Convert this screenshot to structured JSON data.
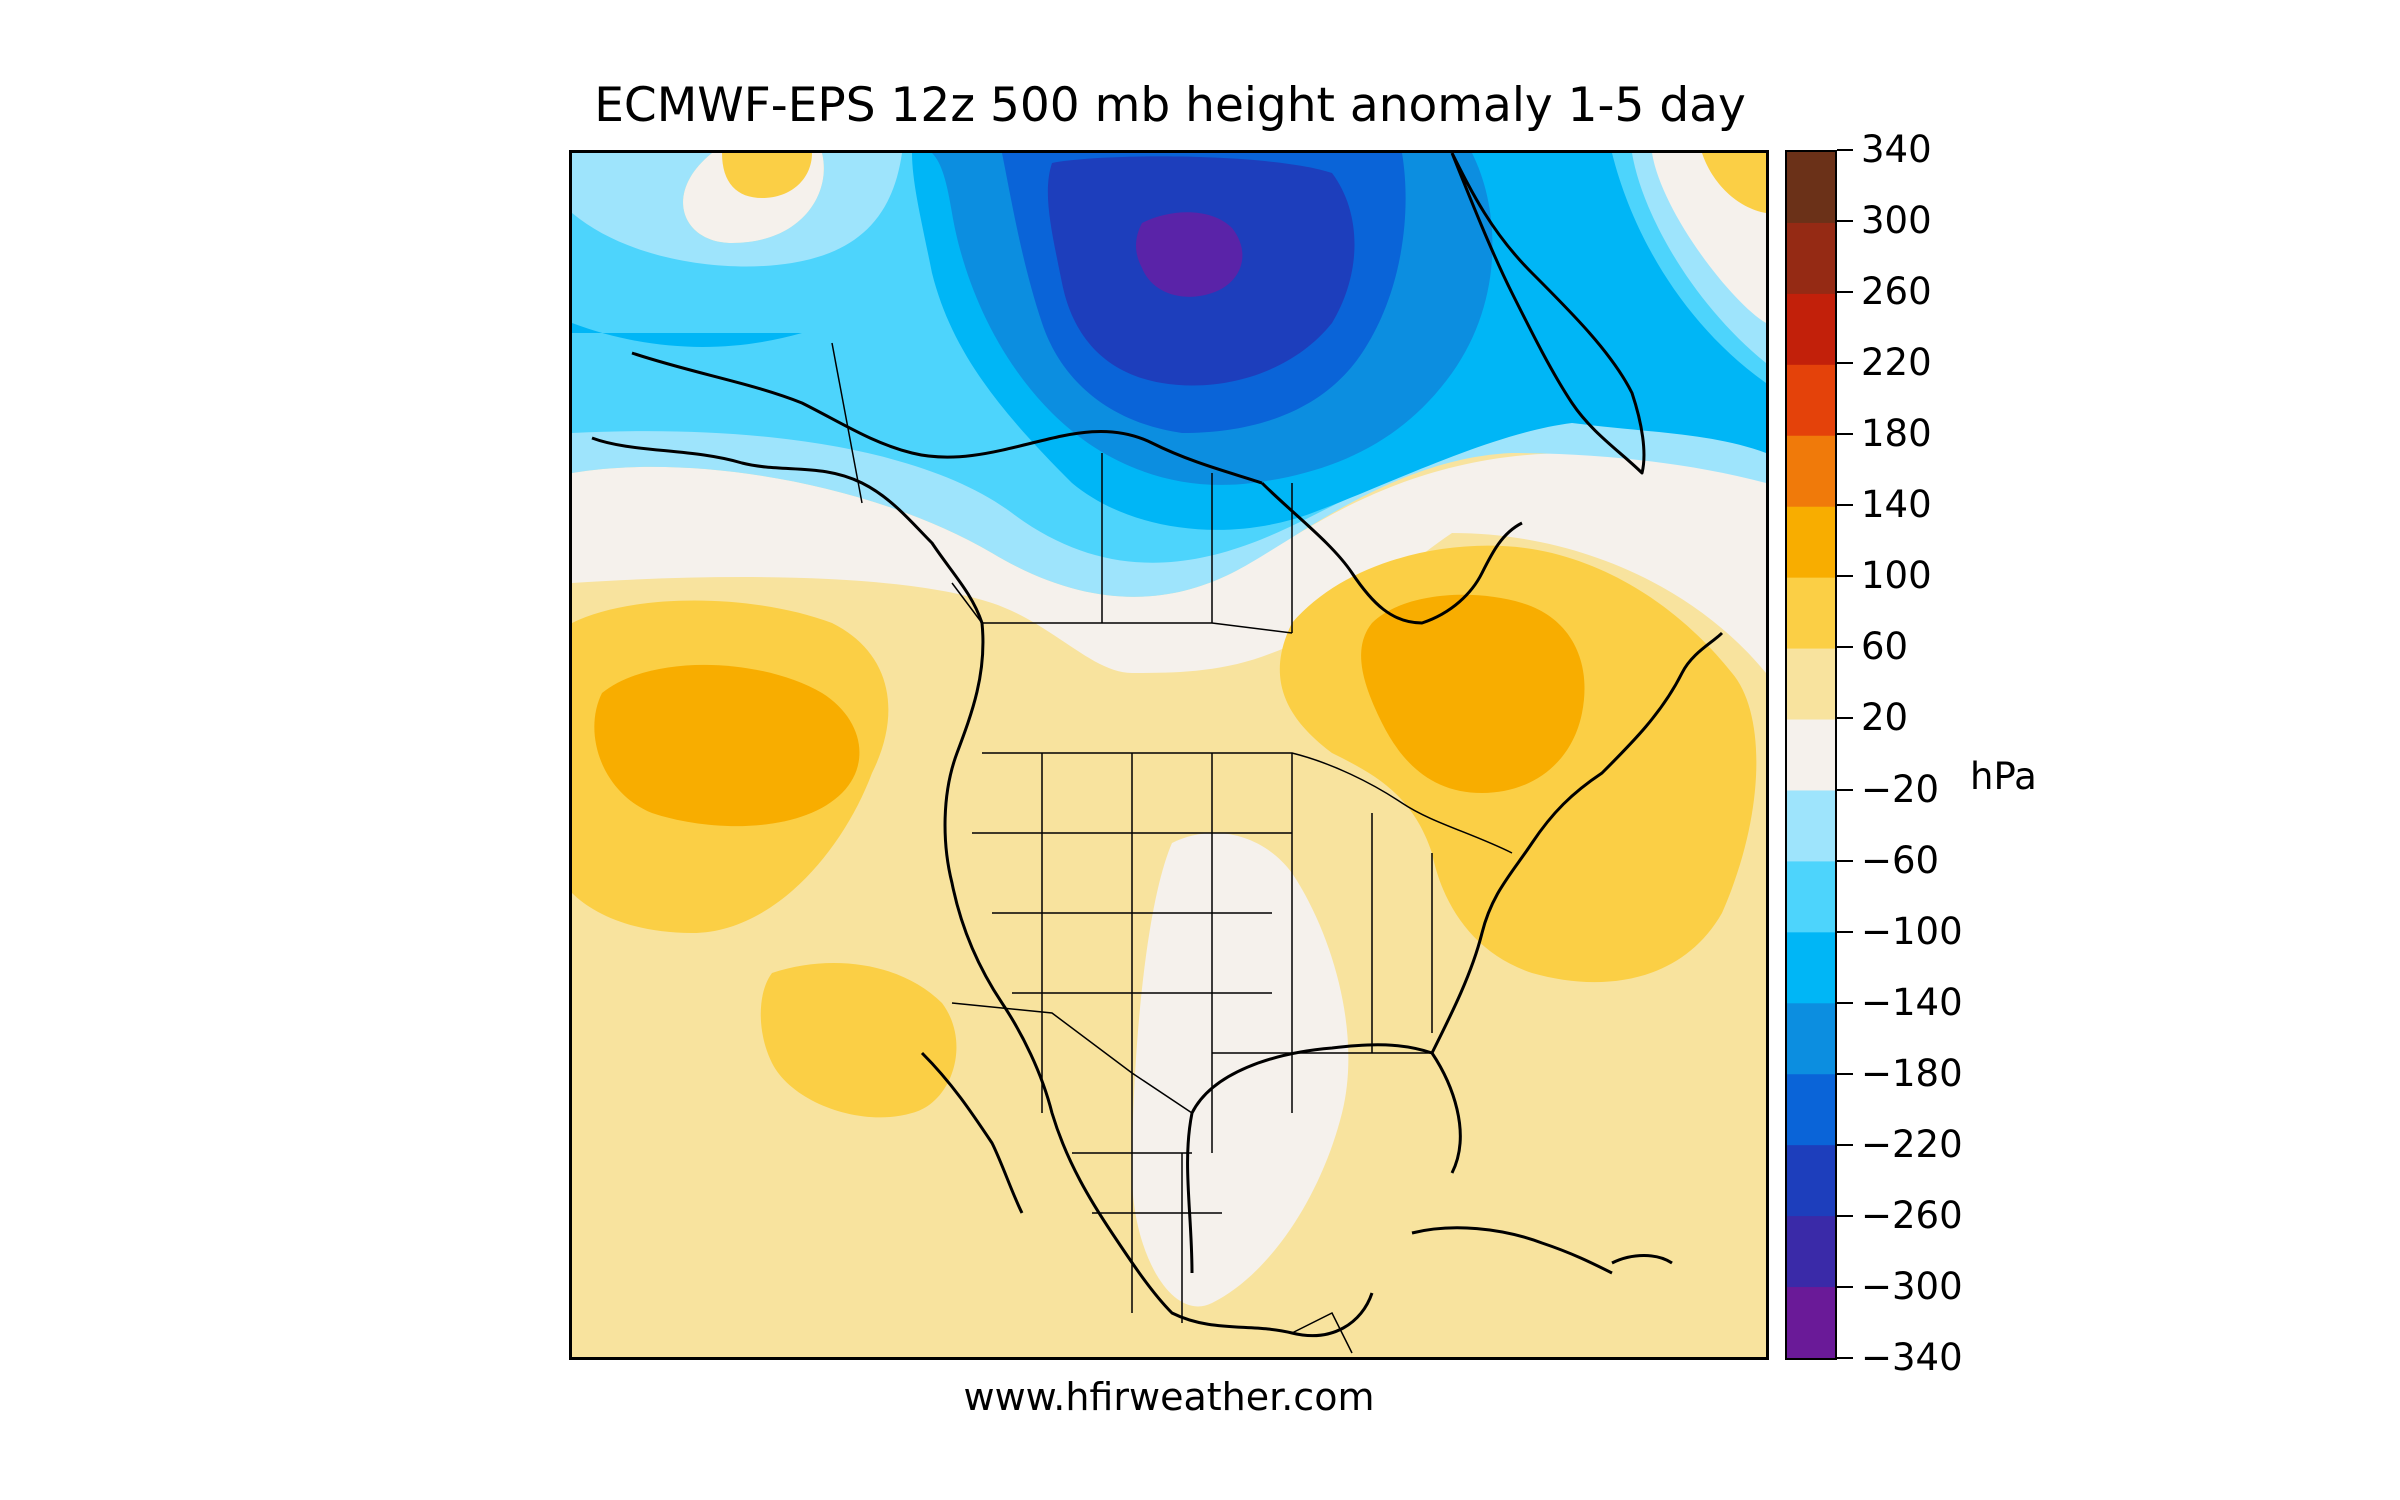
{
  "title": "ECMWF-EPS 12z 500 mb height anomaly 1-5 day",
  "footer": "www.hfirweather.com",
  "colorbar": {
    "unit": "hPa",
    "ticks": [
      "340",
      "300",
      "260",
      "220",
      "180",
      "140",
      "100",
      "60",
      "20",
      "−20",
      "−60",
      "−100",
      "−140",
      "−180",
      "−220",
      "−260",
      "−300",
      "−340"
    ],
    "bands_top_to_bottom": [
      "#6b3118",
      "#952a14",
      "#c2200a",
      "#e4420a",
      "#f07a0a",
      "#f8ad00",
      "#fbcf45",
      "#f8e39e",
      "#f5f1ec",
      "#9ee4fc",
      "#4dd4fc",
      "#00b6f6",
      "#0c8ee0",
      "#0a64d8",
      "#1d3ebc",
      "#3a2aa8",
      "#6a1a98"
    ]
  },
  "map": {
    "region": "North America",
    "field": "500 mb height anomaly",
    "palette": {
      "lowest": "#5a23a8",
      "very_low": "#1d3ebc",
      "lower": "#0a64d8",
      "low": "#0c8ee0",
      "mid_low": "#00b6f6",
      "light_low": "#4dd4fc",
      "faint_low": "#9ee4fc",
      "neutral": "#f5f1ec",
      "faint_high": "#f8e39e",
      "light_high": "#fbcf45",
      "high": "#f8ad00",
      "coast": "#000000",
      "border": "#000000"
    }
  }
}
